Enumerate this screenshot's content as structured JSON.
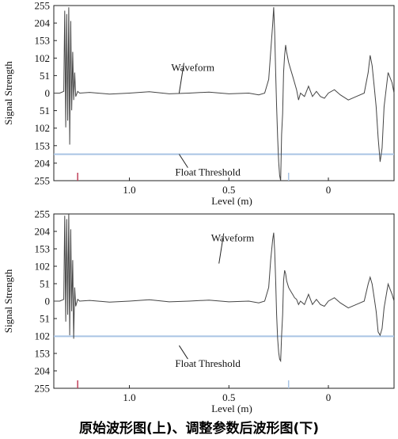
{
  "caption": "原始波形图(上)、调整参数后波形图(下)",
  "colors": {
    "waveform": "#444444",
    "threshold": "#a9c4e4",
    "marker": "#c0405a",
    "axis": "#222222"
  },
  "chart_data": [
    {
      "type": "line",
      "ylabel": "Signal Strength",
      "xlabel": "Level (m)",
      "y_ticks": [
        "255",
        "204",
        "153",
        "102",
        "51",
        "0",
        "51",
        "102",
        "153",
        "204",
        "255"
      ],
      "x_ticks": [
        {
          "label": "1.0",
          "value": 1.0
        },
        {
          "label": "0.5",
          "value": 0.5
        },
        {
          "label": "0",
          "value": 0
        }
      ],
      "xlim": [
        1.38,
        -0.33
      ],
      "ylim": [
        -255,
        255
      ],
      "grid": false,
      "annotations": [
        {
          "text": "Waveform",
          "x": 0.75,
          "y": 0
        },
        {
          "text": "Float Threshold",
          "x": 0.75,
          "y": -178
        }
      ],
      "series": [
        {
          "role": "waveform",
          "x": [
            1.38,
            1.35,
            1.33,
            1.325,
            1.32,
            1.315,
            1.31,
            1.305,
            1.3,
            1.295,
            1.29,
            1.285,
            1.28,
            1.275,
            1.27,
            1.26,
            1.25,
            1.2,
            1.1,
            1.0,
            0.9,
            0.8,
            0.7,
            0.6,
            0.5,
            0.4,
            0.35,
            0.32,
            0.3,
            0.29,
            0.28,
            0.275,
            0.27,
            0.265,
            0.26,
            0.255,
            0.25,
            0.245,
            0.24,
            0.235,
            0.23,
            0.225,
            0.22,
            0.215,
            0.21,
            0.2,
            0.19,
            0.18,
            0.17,
            0.16,
            0.15,
            0.14,
            0.12,
            0.1,
            0.08,
            0.06,
            0.04,
            0.02,
            0.0,
            -0.03,
            -0.06,
            -0.1,
            -0.14,
            -0.18,
            -0.2,
            -0.21,
            -0.22,
            -0.23,
            -0.24,
            -0.25,
            -0.26,
            -0.27,
            -0.28,
            -0.3,
            -0.32,
            -0.33
          ],
          "y": [
            0,
            0,
            5,
            240,
            -100,
            230,
            -80,
            250,
            -150,
            210,
            -50,
            120,
            -20,
            60,
            -10,
            5,
            0,
            2,
            -3,
            0,
            4,
            -2,
            0,
            3,
            -2,
            0,
            -5,
            0,
            40,
            120,
            200,
            250,
            180,
            60,
            -40,
            -130,
            -200,
            -240,
            -255,
            -120,
            -60,
            60,
            110,
            140,
            120,
            90,
            70,
            50,
            30,
            10,
            -20,
            0,
            -10,
            20,
            -10,
            5,
            -10,
            -15,
            0,
            10,
            -5,
            -20,
            -10,
            0,
            60,
            110,
            80,
            20,
            -40,
            -130,
            -200,
            -160,
            -40,
            60,
            30,
            0
          ],
          "values_note": ""
        },
        {
          "role": "threshold",
          "y": -178
        }
      ]
    },
    {
      "type": "line",
      "ylabel": "Signal Strength",
      "xlabel": "Level (m)",
      "y_ticks": [
        "255",
        "204",
        "153",
        "102",
        "51",
        "0",
        "51",
        "102",
        "153",
        "204",
        "255"
      ],
      "x_ticks": [
        {
          "label": "1.0",
          "value": 1.0
        },
        {
          "label": "0.5",
          "value": 0.5
        },
        {
          "label": "0",
          "value": 0
        }
      ],
      "xlim": [
        1.38,
        -0.33
      ],
      "ylim": [
        -255,
        255
      ],
      "grid": false,
      "annotations": [
        {
          "text": "Waveform",
          "x": 0.55,
          "y": 110
        },
        {
          "text": "Float Threshold",
          "x": 0.75,
          "y": -130
        }
      ],
      "series": [
        {
          "role": "waveform",
          "x": [
            1.38,
            1.35,
            1.33,
            1.325,
            1.32,
            1.315,
            1.31,
            1.305,
            1.3,
            1.295,
            1.29,
            1.285,
            1.28,
            1.275,
            1.27,
            1.26,
            1.25,
            1.2,
            1.1,
            1.0,
            0.9,
            0.8,
            0.7,
            0.6,
            0.5,
            0.4,
            0.35,
            0.32,
            0.3,
            0.29,
            0.28,
            0.275,
            0.27,
            0.265,
            0.26,
            0.255,
            0.25,
            0.245,
            0.24,
            0.235,
            0.23,
            0.225,
            0.22,
            0.215,
            0.21,
            0.2,
            0.19,
            0.18,
            0.17,
            0.16,
            0.15,
            0.14,
            0.12,
            0.1,
            0.08,
            0.06,
            0.04,
            0.02,
            0.0,
            -0.03,
            -0.06,
            -0.1,
            -0.14,
            -0.18,
            -0.2,
            -0.21,
            -0.22,
            -0.23,
            -0.24,
            -0.25,
            -0.26,
            -0.27,
            -0.28,
            -0.3,
            -0.32,
            -0.33
          ],
          "y": [
            0,
            0,
            5,
            250,
            -60,
            240,
            -40,
            255,
            -100,
            210,
            -30,
            120,
            -110,
            40,
            -15,
            5,
            0,
            2,
            -3,
            0,
            4,
            -2,
            0,
            3,
            -2,
            0,
            -5,
            0,
            40,
            120,
            180,
            200,
            150,
            60,
            -40,
            -110,
            -150,
            -170,
            -175,
            -100,
            -40,
            60,
            90,
            80,
            60,
            40,
            30,
            20,
            10,
            5,
            -10,
            0,
            -10,
            20,
            -10,
            5,
            -10,
            -15,
            0,
            10,
            -5,
            -20,
            -10,
            0,
            50,
            70,
            50,
            10,
            -30,
            -90,
            -100,
            -80,
            -20,
            50,
            20,
            0
          ]
        },
        {
          "role": "threshold",
          "y": -103
        }
      ]
    }
  ]
}
